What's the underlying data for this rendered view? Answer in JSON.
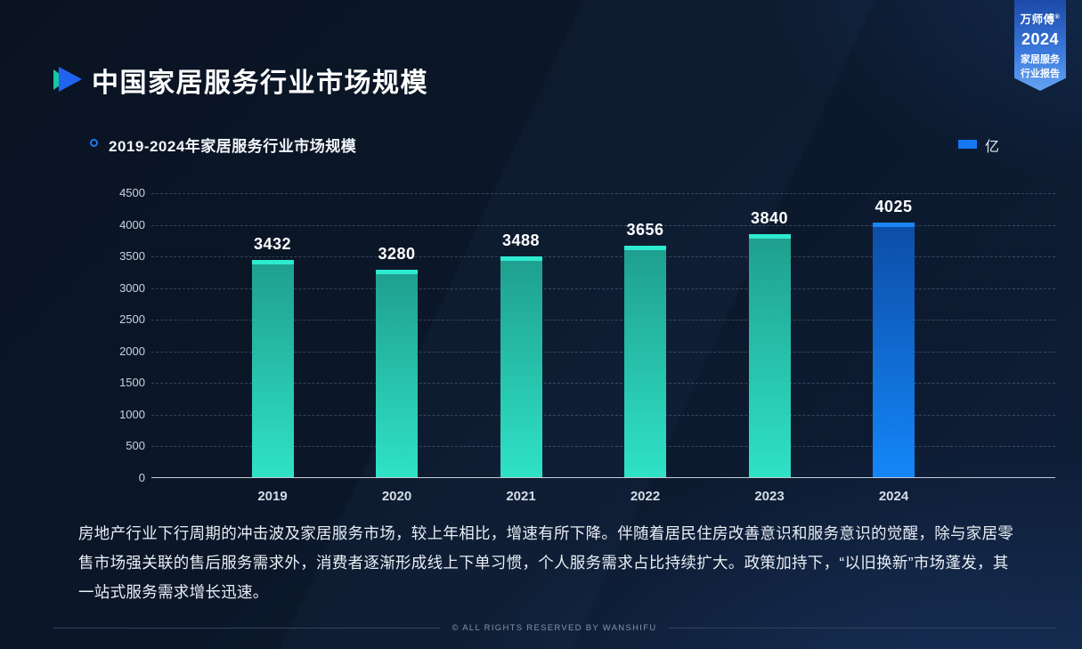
{
  "page": {
    "title": "中国家居服务行业市场规模",
    "footer": "© ALL RIGHTS RESERVED BY WANSHIFU"
  },
  "ribbon": {
    "brand": "万师傅",
    "brand_mark": "®",
    "year": "2024",
    "line1": "家居服务",
    "line2": "行业报告"
  },
  "chart_header": {
    "title": "2019-2024年家居服务行业市场规模",
    "legend_label": "亿"
  },
  "chart_data": {
    "type": "bar",
    "title": "2019-2024年家居服务行业市场规模",
    "categories": [
      "2019",
      "2020",
      "2021",
      "2022",
      "2023",
      "2024"
    ],
    "values": [
      3432,
      3280,
      3488,
      3656,
      3840,
      4025
    ],
    "unit": "亿",
    "xlabel": "",
    "ylabel": "",
    "ylim": [
      0,
      4500
    ],
    "ytick_step": 500,
    "grid": "horizontal-dashed",
    "legend_position": "top-right",
    "highlight_last_bar": true
  },
  "colors": {
    "background": "#0b1526",
    "accent_teal": "#17c7a6",
    "accent_blue": "#1f63f0",
    "legend_swatch": "#1677f2",
    "teal_bar": {
      "cap": "#2dead0",
      "top": "#1f9e8e",
      "bottom": "#2fe2c6"
    },
    "blue_bar": {
      "cap": "#1b85f5",
      "top": "#0d4da6",
      "bottom": "#1486f8"
    }
  },
  "analysis": {
    "text": "房地产行业下行周期的冲击波及家居服务市场，较上年相比，增速有所下降。伴随着居民住房改善意识和服务意识的觉醒，除与家居零售市场强关联的售后服务需求外，消费者逐渐形成线上下单习惯，个人服务需求占比持续扩大。政策加持下，“以旧换新”市场蓬发，其一站式服务需求增长迅速。"
  }
}
